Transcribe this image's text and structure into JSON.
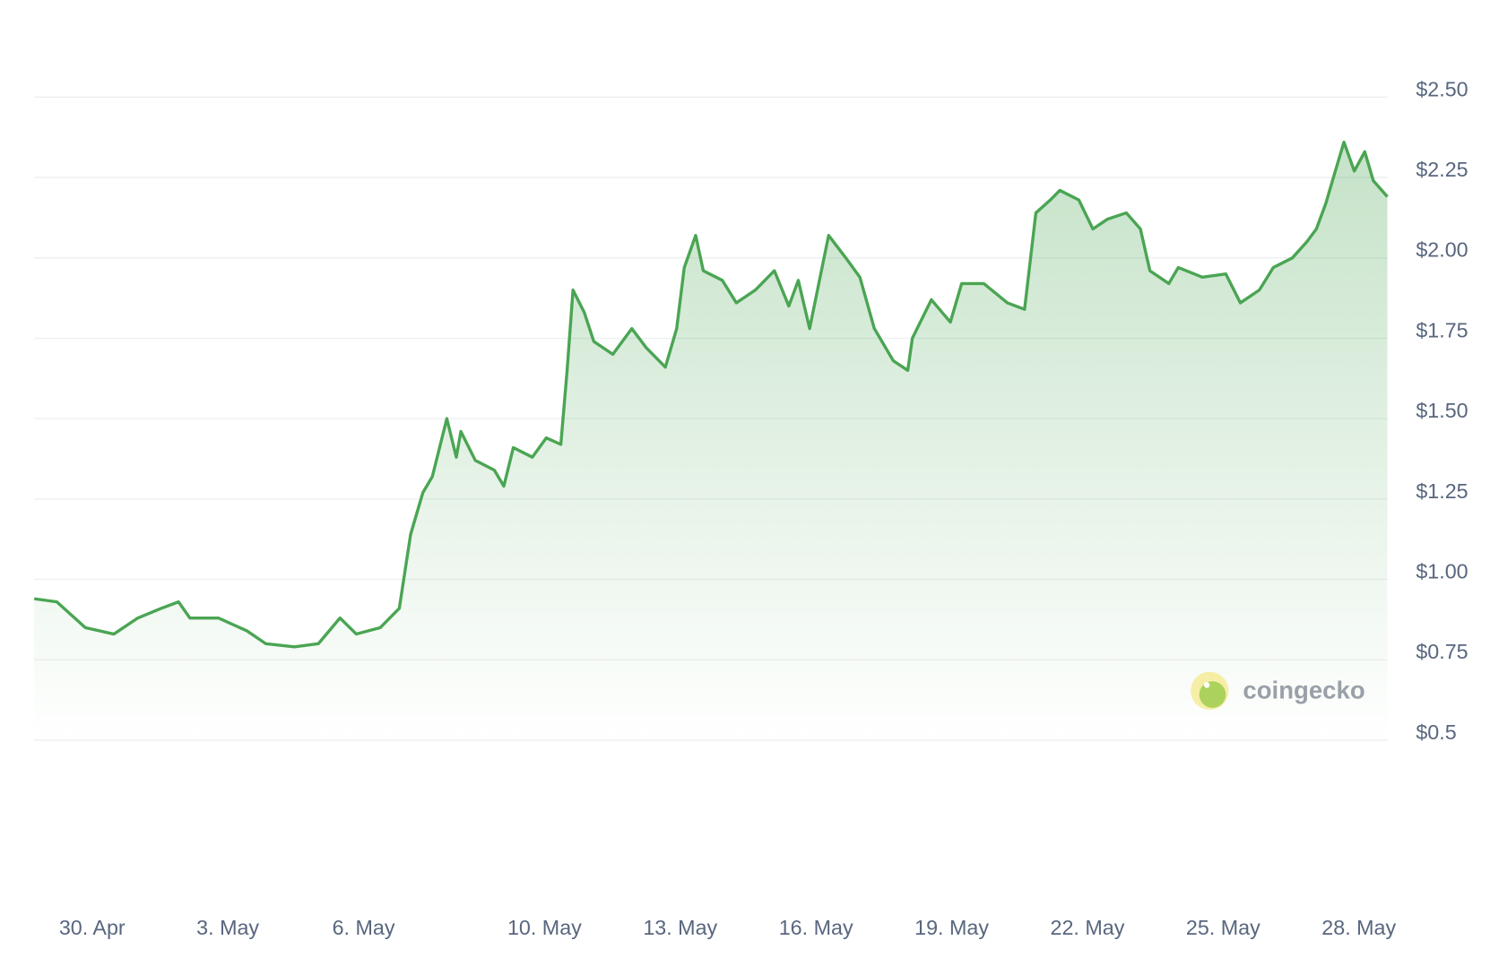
{
  "chart_data": {
    "type": "line",
    "color": "#4aa553",
    "x": [
      -1.28,
      -0.78,
      -0.15,
      0.48,
      1.01,
      1.53,
      1.91,
      2.16,
      2.79,
      3.42,
      3.84,
      4.47,
      5.0,
      5.48,
      5.84,
      6.37,
      6.79,
      7.04,
      7.31,
      7.52,
      7.84,
      8.05,
      8.15,
      8.47,
      8.89,
      9.1,
      9.31,
      9.73,
      10.04,
      10.36,
      10.5,
      10.63,
      10.88,
      11.09,
      11.51,
      11.93,
      12.25,
      12.67,
      12.92,
      13.09,
      13.34,
      13.51,
      13.93,
      14.24,
      14.66,
      15.08,
      15.4,
      15.61,
      15.86,
      16.28,
      16.66,
      16.97,
      17.29,
      17.71,
      18.03,
      18.13,
      18.55,
      18.97,
      19.22,
      19.71,
      20.23,
      20.61,
      20.86,
      21.18,
      21.39,
      21.81,
      22.12,
      22.44,
      22.86,
      23.17,
      23.38,
      23.8,
      24.01,
      24.54,
      25.06,
      25.38,
      25.8,
      26.11,
      26.53,
      26.85,
      27.06,
      27.27,
      27.48,
      27.67,
      27.9,
      28.13,
      28.32,
      28.63
    ],
    "values": [
      0.94,
      0.93,
      0.85,
      0.83,
      0.88,
      0.91,
      0.93,
      0.88,
      0.88,
      0.84,
      0.8,
      0.79,
      0.8,
      0.88,
      0.83,
      0.85,
      0.91,
      1.14,
      1.27,
      1.32,
      1.5,
      1.38,
      1.46,
      1.37,
      1.34,
      1.29,
      1.41,
      1.38,
      1.44,
      1.42,
      1.65,
      1.9,
      1.83,
      1.74,
      1.7,
      1.78,
      1.72,
      1.66,
      1.78,
      1.97,
      2.07,
      1.96,
      1.93,
      1.86,
      1.9,
      1.96,
      1.85,
      1.93,
      1.78,
      2.07,
      2.0,
      1.94,
      1.78,
      1.68,
      1.65,
      1.75,
      1.87,
      1.8,
      1.92,
      1.92,
      1.86,
      1.84,
      2.14,
      2.18,
      2.21,
      2.18,
      2.09,
      2.12,
      2.14,
      2.09,
      1.96,
      1.92,
      1.97,
      1.94,
      1.95,
      1.86,
      1.9,
      1.97,
      2.0,
      2.05,
      2.09,
      2.17,
      2.27,
      2.36,
      2.27,
      2.33,
      2.24,
      2.19
    ],
    "xlim": [
      -1.28,
      28.63
    ],
    "xticks": [
      {
        "value": 0,
        "label": "30. Apr"
      },
      {
        "value": 3,
        "label": "3. May"
      },
      {
        "value": 6,
        "label": "6. May"
      },
      {
        "value": 10,
        "label": "10. May"
      },
      {
        "value": 13,
        "label": "13. May"
      },
      {
        "value": 16,
        "label": "16. May"
      },
      {
        "value": 19,
        "label": "19. May"
      },
      {
        "value": 22,
        "label": "22. May"
      },
      {
        "value": 25,
        "label": "25. May"
      },
      {
        "value": 28,
        "label": "28. May"
      }
    ],
    "ylim": [
      0.5,
      2.5
    ],
    "yticks": [
      {
        "value": 0.5,
        "label": "$0.5"
      },
      {
        "value": 0.75,
        "label": "$0.75"
      },
      {
        "value": 1,
        "label": "$1.00"
      },
      {
        "value": 1.25,
        "label": "$1.25"
      },
      {
        "value": 1.5,
        "label": "$1.50"
      },
      {
        "value": 1.75,
        "label": "$1.75"
      },
      {
        "value": 2,
        "label": "$2.00"
      },
      {
        "value": 2.25,
        "label": "$2.25"
      },
      {
        "value": 2.5,
        "label": "$2.50"
      }
    ],
    "grid": true,
    "watermark": "coingecko"
  }
}
